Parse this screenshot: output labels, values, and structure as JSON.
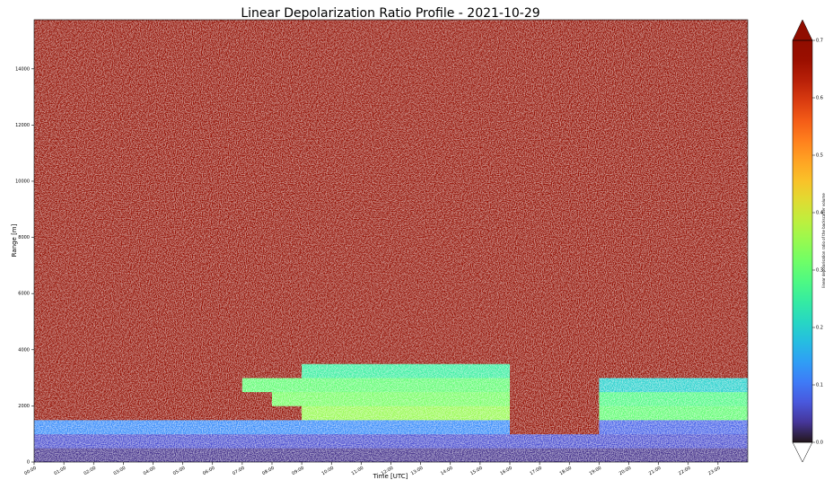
{
  "chart_data": {
    "type": "heatmap",
    "title": "Linear Depolarization Ratio Profile - 2021-10-29",
    "xlabel": "Time [UTC]",
    "ylabel": "Range [m]",
    "colorbar_label": "linear depolarisation ratio of the backscatter volume",
    "colormap": "turbo",
    "clim": [
      0,
      0.7
    ],
    "cticks": [
      {
        "value": 0,
        "label": "0.0"
      },
      0.1,
      0.2,
      0.3,
      0.4,
      0.5,
      0.6,
      0.7
    ],
    "xlim": [
      0,
      24
    ],
    "ylim": [
      0,
      15750
    ],
    "xticks": [
      {
        "value": 0,
        "label": "00:00"
      },
      {
        "value": 1,
        "label": "01:00"
      },
      {
        "value": 2,
        "label": "02:00"
      },
      {
        "value": 3,
        "label": "03:00"
      },
      {
        "value": 4,
        "label": "04:00"
      },
      {
        "value": 5,
        "label": "05:00"
      },
      {
        "value": 6,
        "label": "06:00"
      },
      {
        "value": 7,
        "label": "07:00"
      },
      {
        "value": 8,
        "label": "08:00"
      },
      {
        "value": 9,
        "label": "09:00"
      },
      {
        "value": 10,
        "label": "10:00"
      },
      {
        "value": 11,
        "label": "11:00"
      },
      {
        "value": 12,
        "label": "12:00"
      },
      {
        "value": 13,
        "label": "13:00"
      },
      {
        "value": 14,
        "label": "14:00"
      },
      {
        "value": 15,
        "label": "15:00"
      },
      {
        "value": 16,
        "label": "16:00"
      },
      {
        "value": 17,
        "label": "17:00"
      },
      {
        "value": 18,
        "label": "18:00"
      },
      {
        "value": 19,
        "label": "19:00"
      },
      {
        "value": 20,
        "label": "20:00"
      },
      {
        "value": 21,
        "label": "21:00"
      },
      {
        "value": 22,
        "label": "22:00"
      },
      {
        "value": 23,
        "label": "23:00"
      }
    ],
    "yticks": [
      0,
      2000,
      4000,
      6000,
      8000,
      10000,
      12000,
      14000
    ],
    "x_edges": [
      0,
      1,
      2,
      3,
      4,
      5,
      6,
      7,
      8,
      9,
      10,
      11,
      12,
      13,
      14,
      15,
      16,
      17,
      18,
      19,
      20,
      21,
      22,
      23,
      24
    ],
    "y_edges": [
      0,
      500,
      1000,
      1500,
      2000,
      2500,
      3000,
      3500,
      15750
    ],
    "values": [
      [
        0.03,
        0.03,
        0.03,
        0.03,
        0.03,
        0.03,
        0.03,
        0.03,
        0.03,
        0.03,
        0.03,
        0.03,
        0.03,
        0.03,
        0.03,
        0.03,
        0.03,
        0.03,
        0.03,
        0.03,
        0.03,
        0.03,
        0.03,
        0.03
      ],
      [
        0.06,
        0.06,
        0.06,
        0.06,
        0.06,
        0.06,
        0.06,
        0.06,
        0.06,
        0.06,
        0.06,
        0.06,
        0.06,
        0.06,
        0.06,
        0.06,
        0.06,
        0.06,
        0.06,
        0.06,
        0.06,
        0.06,
        0.06,
        0.06
      ],
      [
        0.12,
        0.12,
        0.12,
        0.12,
        0.12,
        0.12,
        0.12,
        0.12,
        0.12,
        0.12,
        0.12,
        0.12,
        0.12,
        0.12,
        0.12,
        0.12,
        0.7,
        0.7,
        0.7,
        0.08,
        0.08,
        0.08,
        0.08,
        0.08
      ],
      [
        0.7,
        0.7,
        0.7,
        0.7,
        0.7,
        0.7,
        0.7,
        0.7,
        0.7,
        0.35,
        0.35,
        0.35,
        0.35,
        0.35,
        0.35,
        0.35,
        0.7,
        0.7,
        0.7,
        0.3,
        0.3,
        0.3,
        0.3,
        0.3
      ],
      [
        0.7,
        0.7,
        0.7,
        0.7,
        0.7,
        0.7,
        0.7,
        0.7,
        0.32,
        0.32,
        0.32,
        0.32,
        0.32,
        0.32,
        0.32,
        0.32,
        0.7,
        0.7,
        0.7,
        0.28,
        0.28,
        0.28,
        0.28,
        0.28
      ],
      [
        0.7,
        0.7,
        0.7,
        0.7,
        0.7,
        0.7,
        0.7,
        0.3,
        0.3,
        0.3,
        0.3,
        0.3,
        0.3,
        0.3,
        0.3,
        0.3,
        0.7,
        0.7,
        0.7,
        0.2,
        0.2,
        0.2,
        0.2,
        0.2
      ],
      [
        0.7,
        0.7,
        0.7,
        0.7,
        0.7,
        0.7,
        0.7,
        0.7,
        0.7,
        0.25,
        0.25,
        0.25,
        0.25,
        0.25,
        0.25,
        0.25,
        0.7,
        0.7,
        0.7,
        0.7,
        0.7,
        0.7,
        0.7,
        0.7
      ],
      [
        0.7,
        0.7,
        0.7,
        0.7,
        0.7,
        0.7,
        0.7,
        0.7,
        0.7,
        0.7,
        0.7,
        0.7,
        0.7,
        0.7,
        0.7,
        0.7,
        0.7,
        0.7,
        0.7,
        0.7,
        0.7,
        0.7,
        0.7,
        0.7
      ]
    ]
  }
}
